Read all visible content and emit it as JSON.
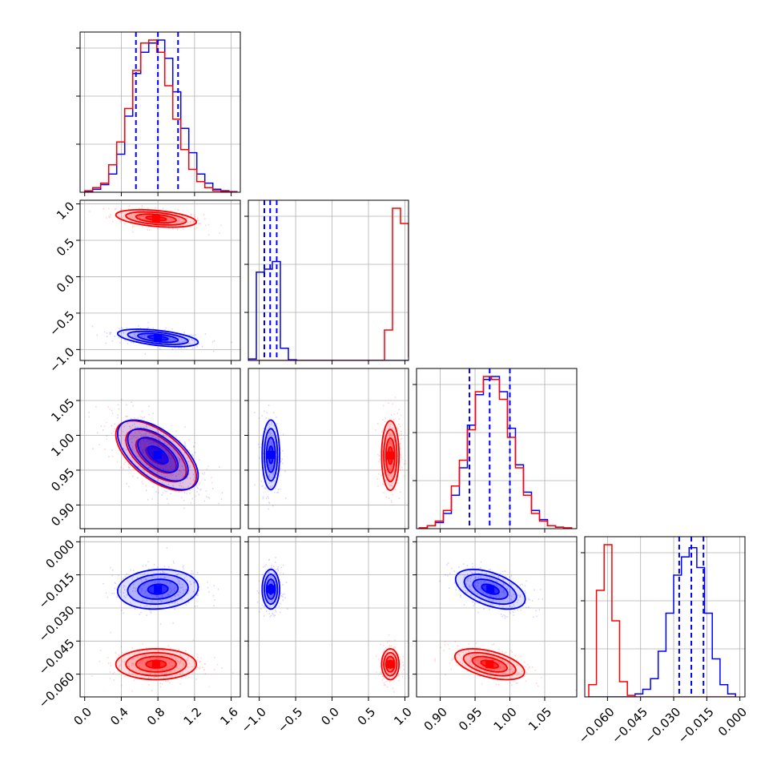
{
  "chart_data": {
    "type": "corner",
    "grid": true,
    "colors": {
      "series_a": "#ff0000",
      "series_b": "#0000ff"
    },
    "parameters": [
      {
        "range": [
          -0.05,
          1.7
        ],
        "ticks": [
          0.0,
          0.4,
          0.8,
          1.2,
          1.6
        ],
        "tick_labels": [
          "0.0",
          "0.4",
          "0.8",
          "1.2",
          "1.6"
        ]
      },
      {
        "range": [
          -1.15,
          1.05
        ],
        "ticks": [
          -1.0,
          -0.5,
          0.0,
          0.5,
          1.0
        ],
        "tick_labels": [
          "−1.0",
          "−0.5",
          "0.0",
          "0.5",
          "1.0"
        ]
      },
      {
        "range": [
          0.866,
          1.096
        ],
        "ticks": [
          0.9,
          0.95,
          1.0,
          1.05
        ],
        "tick_labels": [
          "0.90",
          "0.95",
          "1.00",
          "1.05"
        ]
      },
      {
        "range": [
          -0.0703,
          0.0023
        ],
        "ticks": [
          -0.06,
          -0.045,
          -0.03,
          -0.015,
          0.0
        ],
        "tick_labels": [
          "−0.060",
          "−0.045",
          "−0.030",
          "−0.015",
          "0.000"
        ]
      }
    ],
    "series": [
      {
        "color": "#ff0000",
        "means": [
          0.78,
          0.8,
          0.971,
          -0.0555
        ],
        "sigmas": [
          0.22,
          0.06,
          0.025,
          0.0035
        ],
        "correlations": {
          "0-1": -0.4,
          "0-2": -0.6,
          "0-3": 0.0,
          "1-2": 0.0,
          "1-3": 0.0,
          "2-3": -0.5
        }
      },
      {
        "color": "#0000ff",
        "means": [
          0.8,
          -0.84,
          0.972,
          -0.0215
        ],
        "sigmas": [
          0.22,
          0.06,
          0.025,
          0.0045
        ],
        "correlations": {
          "0-1": -0.5,
          "0-2": -0.6,
          "0-3": 0.1,
          "1-2": 0.0,
          "1-3": 0.0,
          "2-3": -0.5
        }
      }
    ],
    "quantile_lines": {
      "color": "#0000ff",
      "style": "dashed",
      "values": [
        [
          0.56,
          0.8,
          1.02
        ],
        [
          -0.93,
          -0.85,
          -0.76
        ],
        [
          0.942,
          0.971,
          1.0
        ],
        [
          -0.0275,
          -0.022,
          -0.0165
        ]
      ]
    },
    "histograms": {
      "bin_edges": [
        [
          0.0,
          0.0875,
          0.175,
          0.2625,
          0.35,
          0.4375,
          0.525,
          0.6125,
          0.7,
          0.7875,
          0.875,
          0.9625,
          1.05,
          1.1375,
          1.225,
          1.3125,
          1.4,
          1.4875,
          1.575,
          1.6625
        ],
        [
          -1.15,
          -1.04,
          -0.93,
          -0.82,
          -0.71,
          -0.6,
          -0.49,
          -0.38,
          -0.27,
          -0.16,
          -0.05,
          0.06,
          0.17,
          0.28,
          0.39,
          0.5,
          0.61,
          0.72,
          0.83,
          0.94,
          1.05
        ],
        [
          0.87,
          0.8815,
          0.893,
          0.9045,
          0.916,
          0.9275,
          0.939,
          0.9505,
          0.962,
          0.9735,
          0.985,
          0.9965,
          1.008,
          1.0195,
          1.031,
          1.0425,
          1.054,
          1.0655,
          1.077,
          1.0885
        ],
        [
          -0.0685,
          -0.065,
          -0.0615,
          -0.058,
          -0.0545,
          -0.051,
          -0.0475,
          -0.044,
          -0.0405,
          -0.037,
          -0.0335,
          -0.03,
          -0.0265,
          -0.023,
          -0.0195,
          -0.016,
          -0.0125,
          -0.009,
          -0.0055,
          -0.002
        ]
      ],
      "series_a_counts": [
        [
          1,
          3,
          6,
          18,
          33,
          55,
          80,
          98,
          100,
          92,
          70,
          48,
          28,
          15,
          7,
          3,
          1,
          0.5,
          0.2
        ],
        [
          0,
          0,
          0,
          0,
          0,
          0,
          0,
          0,
          0,
          0,
          0,
          0,
          0,
          0,
          0,
          0,
          0,
          20,
          100,
          90,
          2
        ],
        [
          0.5,
          2,
          5,
          12,
          28,
          45,
          65,
          90,
          100,
          98,
          85,
          60,
          40,
          22,
          10,
          5,
          2,
          1,
          0.5
        ],
        [
          8,
          70,
          100,
          50,
          10,
          1,
          0,
          0,
          0,
          0,
          0,
          0,
          0,
          0,
          0,
          0,
          0,
          0,
          0
        ]
      ],
      "series_b_counts": [
        [
          0.5,
          2,
          5,
          12,
          25,
          50,
          78,
          92,
          98,
          100,
          88,
          66,
          42,
          26,
          12,
          6,
          2,
          1,
          0.4
        ],
        [
          1,
          58,
          60,
          65,
          8,
          0.5,
          0,
          0,
          0,
          0,
          0,
          0,
          0,
          0,
          0,
          0,
          0,
          0,
          0,
          0,
          0
        ],
        [
          0.5,
          2,
          4,
          10,
          22,
          40,
          68,
          88,
          98,
          100,
          90,
          66,
          42,
          24,
          12,
          6,
          2,
          1,
          0.5
        ],
        [
          0,
          0,
          0,
          0,
          0,
          0,
          2,
          5,
          12,
          30,
          55,
          80,
          92,
          98,
          85,
          55,
          25,
          8,
          2
        ]
      ]
    }
  }
}
